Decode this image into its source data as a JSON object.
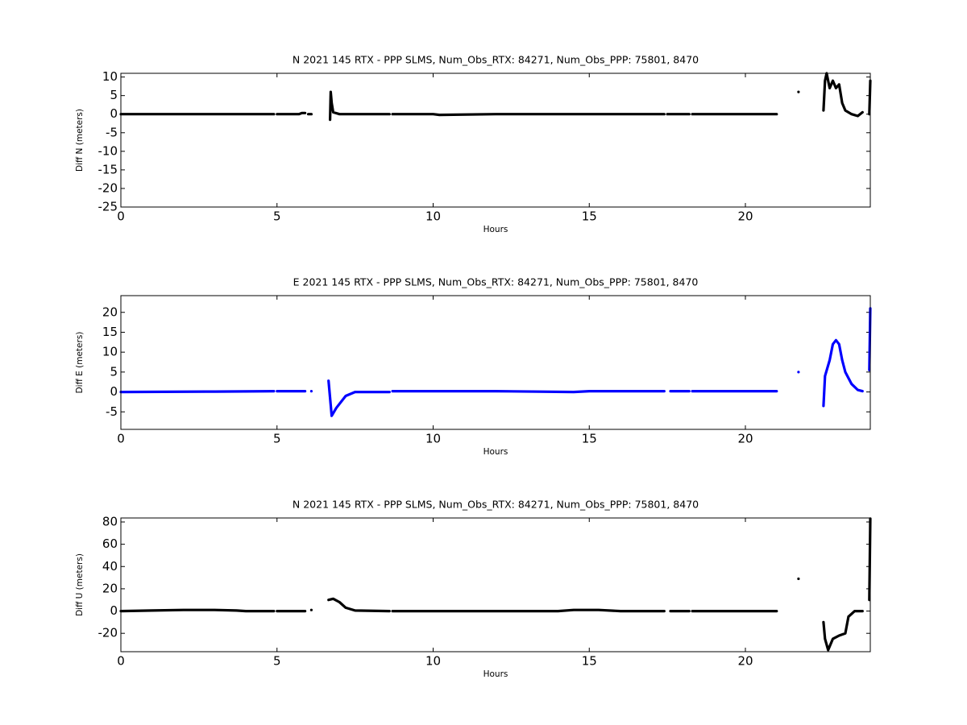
{
  "chart_data": [
    {
      "type": "line",
      "title": "N 2021 145 RTX - PPP  SLMS, Num_Obs_RTX: 84271, Num_Obs_PPP: 75801, 8470",
      "x_label": "Hours",
      "y_label": "Diff N (meters)",
      "xlim": [
        0,
        24
      ],
      "xticks": [
        0,
        5,
        10,
        15,
        20
      ],
      "ylim": [
        -25,
        11
      ],
      "yticks": [
        -25,
        -20,
        -15,
        -10,
        -5,
        0,
        5,
        10
      ],
      "series": [
        {
          "color": "#000000",
          "x": [
            0,
            2,
            4.9,
            4.95,
            5.0,
            5.7,
            5.8,
            5.9,
            5.95,
            6.0,
            6.1,
            6.4,
            6.7,
            6.72,
            6.75,
            6.8,
            7.0,
            8.6,
            8.65,
            8.7,
            10,
            10.2,
            12,
            17.4,
            17.45,
            17.5,
            18.2,
            18.25,
            18.3,
            21.0,
            21.3,
            21.7,
            22.0,
            22.5,
            22.55,
            22.6,
            22.7,
            22.8,
            22.9,
            23.0,
            23.1,
            23.2,
            23.4,
            23.6,
            23.75,
            23.8,
            23.97,
            24.0
          ],
          "values": [
            0,
            0,
            0,
            null,
            0,
            0,
            0.3,
            0.3,
            null,
            0,
            0,
            null,
            -1.5,
            6,
            3,
            0.5,
            0,
            0,
            null,
            0,
            0,
            -0.2,
            0,
            0,
            null,
            0,
            0,
            null,
            0,
            0,
            null,
            6,
            null,
            1,
            9,
            11,
            7,
            9,
            7,
            8,
            3,
            1,
            0,
            -0.5,
            0.5,
            null,
            0,
            9
          ]
        }
      ]
    },
    {
      "type": "line",
      "title": "E 2021 145 RTX - PPP  SLMS, Num_Obs_RTX: 84271, Num_Obs_PPP: 75801, 8470",
      "x_label": "Hours",
      "y_label": "Diff E (meters)",
      "xlim": [
        0,
        24
      ],
      "xticks": [
        0,
        5,
        10,
        15,
        20
      ],
      "ylim": [
        -9.4,
        24.2
      ],
      "yticks": [
        -5,
        0,
        5,
        10,
        15,
        20
      ],
      "series": [
        {
          "color": "#0000ff",
          "x": [
            0,
            3,
            4.9,
            4.95,
            5.0,
            5.9,
            5.95,
            6.1,
            6.2,
            6.65,
            6.75,
            6.9,
            7.2,
            7.5,
            8.6,
            8.65,
            8.7,
            12,
            14.5,
            15,
            17.4,
            17.45,
            17.6,
            18.2,
            18.25,
            18.3,
            21.0,
            21.3,
            21.7,
            22.0,
            22.5,
            22.55,
            22.7,
            22.8,
            22.9,
            23.0,
            23.1,
            23.2,
            23.4,
            23.6,
            23.75,
            23.8,
            23.97,
            24.0
          ],
          "values": [
            0,
            0.1,
            0.2,
            null,
            0.2,
            0.2,
            null,
            0.2,
            null,
            2.8,
            -6,
            -4,
            -1,
            0,
            0,
            null,
            0.2,
            0.2,
            0,
            0.2,
            0.2,
            null,
            0.2,
            0.2,
            null,
            0.2,
            0.2,
            null,
            5,
            null,
            -3.5,
            4,
            8,
            12,
            13,
            12,
            8,
            5,
            2,
            0.5,
            0.2,
            null,
            5.5,
            21
          ]
        }
      ]
    },
    {
      "type": "line",
      "title": "N 2021 145 RTX - PPP  SLMS, Num_Obs_RTX: 84271, Num_Obs_PPP: 75801, 8470",
      "x_label": "Hours",
      "y_label": "Diff U (meters)",
      "xlim": [
        0,
        24
      ],
      "xticks": [
        0,
        5,
        10,
        15,
        20
      ],
      "ylim": [
        -36.5,
        83.6
      ],
      "yticks": [
        -20,
        0,
        20,
        40,
        60,
        80
      ],
      "series": [
        {
          "color": "#000000",
          "x": [
            0,
            1,
            2,
            3,
            3.7,
            4,
            4.9,
            4.95,
            5.0,
            5.9,
            5.95,
            6.1,
            6.2,
            6.65,
            6.8,
            7.0,
            7.2,
            7.5,
            8.6,
            8.65,
            8.7,
            14,
            14.5,
            15.3,
            16,
            17.4,
            17.45,
            17.6,
            18.2,
            18.25,
            18.3,
            21.0,
            21.3,
            21.7,
            22.0,
            22.5,
            22.55,
            22.65,
            22.8,
            23.0,
            23.2,
            23.3,
            23.5,
            23.75,
            23.8,
            23.97,
            24.0
          ],
          "values": [
            0,
            0.5,
            1,
            1,
            0.5,
            0,
            0,
            null,
            0,
            0,
            null,
            1,
            null,
            10,
            11,
            8,
            3,
            0.5,
            0,
            null,
            0,
            0,
            1,
            1,
            0,
            0,
            null,
            0,
            0,
            null,
            0,
            0,
            null,
            29,
            null,
            -10,
            -25,
            -35,
            -25,
            -22,
            -20,
            -5,
            0,
            0,
            null,
            10,
            83
          ]
        }
      ]
    }
  ]
}
